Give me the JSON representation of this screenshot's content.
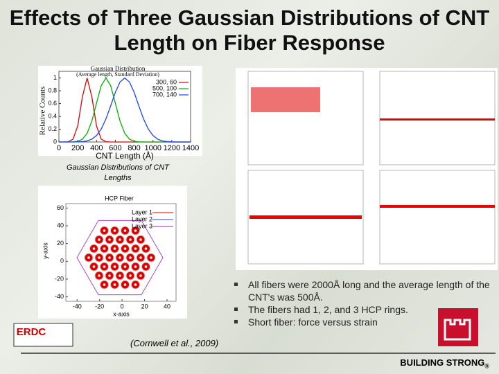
{
  "title": "Effects of Three Gaussian Distributions of CNT Length on Fiber Response",
  "gaussian_chart": {
    "type": "line",
    "title": "Gaussian Distribution",
    "subtitle": "(Average length, Standard Deviation)",
    "x_label": "CNT Length (Å)",
    "y_label": "Relative Counts",
    "x": [
      0,
      50,
      100,
      150,
      200,
      250,
      300,
      350,
      400,
      450,
      500,
      550,
      600,
      650,
      700,
      750,
      800,
      850,
      900,
      950,
      1000,
      1050,
      1100,
      1150,
      1200,
      1250,
      1300,
      1350,
      1400
    ],
    "series": [
      {
        "name": "300, 60",
        "color": "#e00000",
        "values": [
          0,
          0,
          0.004,
          0.044,
          0.249,
          0.707,
          1,
          0.707,
          0.249,
          0.044,
          0.004,
          0,
          0,
          0,
          0,
          0,
          0,
          0,
          0,
          0,
          0,
          0,
          0,
          0,
          0,
          0,
          0,
          0,
          0
        ]
      },
      {
        "name": "500, 100",
        "color": "#00b000",
        "values": [
          0,
          0,
          0,
          0.002,
          0.011,
          0.044,
          0.135,
          0.325,
          0.607,
          0.882,
          1,
          0.882,
          0.607,
          0.325,
          0.135,
          0.044,
          0.011,
          0.002,
          0,
          0,
          0,
          0,
          0,
          0,
          0,
          0,
          0,
          0,
          0
        ]
      },
      {
        "name": "700, 140",
        "color": "#2040ff",
        "values": [
          0,
          0,
          0,
          0,
          0.002,
          0.006,
          0.017,
          0.044,
          0.101,
          0.203,
          0.36,
          0.563,
          0.775,
          0.938,
          1,
          0.938,
          0.775,
          0.563,
          0.36,
          0.203,
          0.101,
          0.044,
          0.017,
          0.006,
          0.002,
          0,
          0,
          0,
          0
        ]
      }
    ],
    "xlim": [
      0,
      1400
    ],
    "ylim": [
      0,
      1.05
    ],
    "xticks": [
      0,
      200,
      400,
      600,
      800,
      1000,
      1200,
      1400
    ],
    "yticks": [
      0,
      0.2,
      0.4,
      0.6,
      0.8,
      1
    ]
  },
  "gaussian_caption": "Gaussian Distributions of CNT Lengths",
  "hcp_chart": {
    "title": "HCP Fiber",
    "x_label": "x-axis",
    "y_label": "y-axis",
    "legend": [
      {
        "name": "Layer 1",
        "color": "#e00000"
      },
      {
        "name": "Layer 2",
        "color": "#2040ff"
      },
      {
        "name": "Layer 3",
        "color": "#a020c0"
      }
    ],
    "xlim": [
      -50,
      48
    ],
    "ylim": [
      -45,
      65
    ],
    "xticks": [
      -40,
      -20,
      0,
      20,
      40
    ],
    "yticks": [
      -40,
      -20,
      0,
      20,
      40,
      60
    ]
  },
  "bullets": [
    "All fibers were 2000Å long and the average length of the CNT's was 500Å.",
    "The fibers had 1, 2, and 3 HCP rings.",
    "Short fiber: force versus strain"
  ],
  "citation": "(Cornwell et al., 2009)",
  "logo": "ERDC",
  "footer": "BUILDING STRONG",
  "footer_mark": "®"
}
